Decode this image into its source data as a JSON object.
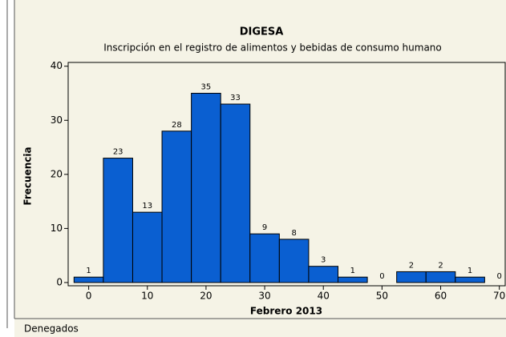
{
  "chart_data": {
    "type": "histogram",
    "title": "DIGESA",
    "subtitle": "Inscripción en el registro de alimentos y bebidas de consumo humano",
    "xlabel": "Febrero 2013",
    "ylabel": "Frecuencia",
    "bins": [
      -2.5,
      2.5,
      7.5,
      12.5,
      17.5,
      22.5,
      27.5,
      32.5,
      37.5,
      42.5,
      47.5,
      52.5,
      57.5,
      62.5,
      67.5,
      72.5
    ],
    "values": [
      1,
      23,
      13,
      28,
      35,
      33,
      9,
      8,
      3,
      1,
      0,
      2,
      2,
      1,
      0
    ],
    "color": "#0a5fd1",
    "xlim": [
      -3.5,
      71
    ],
    "ylim": [
      -0.6,
      40.7
    ],
    "xticks": [
      0,
      10,
      20,
      30,
      40,
      50,
      60,
      70
    ],
    "yticks": [
      0,
      10,
      20,
      30,
      40
    ]
  },
  "sheet_label": "Denegados"
}
